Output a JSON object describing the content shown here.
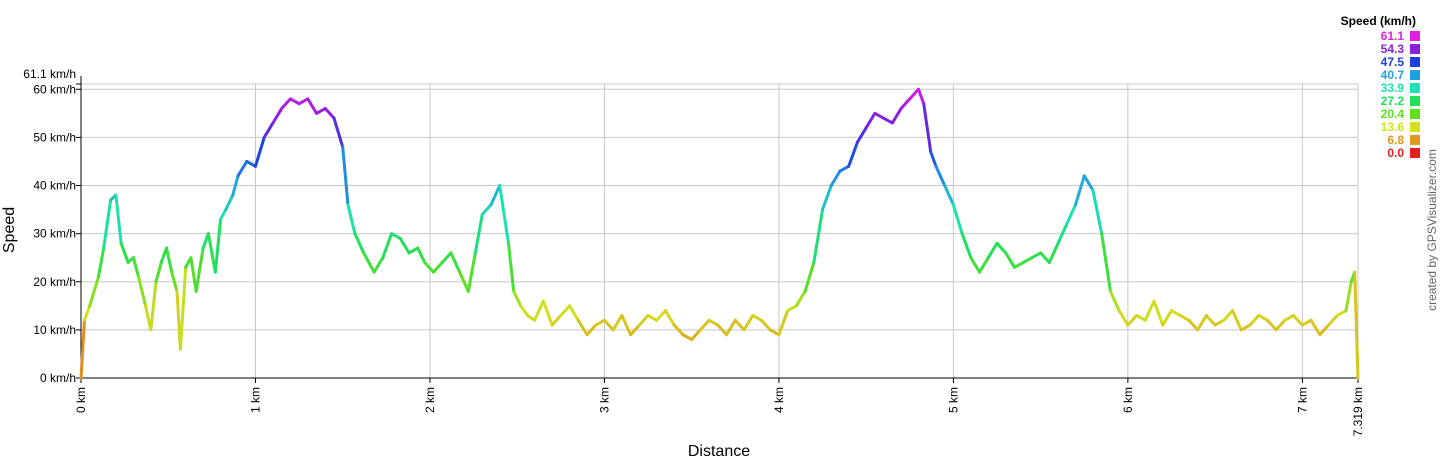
{
  "chart_data": {
    "type": "line",
    "title": "",
    "xlabel": "Distance",
    "ylabel": "Speed",
    "x_unit": "km",
    "y_unit": "km/h",
    "xlim": [
      0,
      7.319
    ],
    "ylim": [
      0,
      61.1
    ],
    "grid": true,
    "x_ticks": [
      "0 km",
      "1 km",
      "2 km",
      "3 km",
      "4 km",
      "5 km",
      "6 km",
      "7 km",
      "7.319 km"
    ],
    "y_ticks": [
      "0 km/h",
      "10 km/h",
      "20 km/h",
      "30 km/h",
      "40 km/h",
      "50 km/h",
      "60 km/h"
    ],
    "y_max_label": "61.1 km/h",
    "series": [
      {
        "x": [
          0,
          0.02,
          0.05,
          0.1,
          0.13,
          0.17,
          0.2,
          0.23,
          0.27,
          0.3,
          0.33,
          0.37,
          0.4,
          0.43,
          0.46,
          0.49,
          0.52,
          0.55,
          0.57,
          0.6,
          0.63,
          0.66,
          0.7,
          0.73,
          0.77,
          0.8,
          0.83,
          0.87,
          0.9,
          0.95,
          1.0,
          1.05,
          1.1,
          1.15,
          1.2,
          1.25,
          1.3,
          1.35,
          1.4,
          1.45,
          1.5,
          1.53,
          1.57,
          1.62,
          1.68,
          1.73,
          1.78,
          1.83,
          1.88,
          1.93,
          1.97,
          2.02,
          2.07,
          2.12,
          2.17,
          2.22,
          2.26,
          2.3,
          2.35,
          2.4,
          2.45,
          2.48,
          2.52,
          2.56,
          2.6,
          2.65,
          2.7,
          2.75,
          2.8,
          2.85,
          2.9,
          2.95,
          3.0,
          3.05,
          3.1,
          3.15,
          3.2,
          3.25,
          3.3,
          3.35,
          3.4,
          3.45,
          3.5,
          3.55,
          3.6,
          3.65,
          3.7,
          3.75,
          3.8,
          3.85,
          3.9,
          3.95,
          4.0,
          4.05,
          4.1,
          4.15,
          4.2,
          4.25,
          4.3,
          4.35,
          4.4,
          4.45,
          4.5,
          4.55,
          4.6,
          4.65,
          4.7,
          4.75,
          4.8,
          4.83,
          4.87,
          4.9,
          4.95,
          5.0,
          5.05,
          5.1,
          5.15,
          5.2,
          5.25,
          5.3,
          5.35,
          5.4,
          5.45,
          5.5,
          5.55,
          5.6,
          5.65,
          5.7,
          5.75,
          5.8,
          5.85,
          5.9,
          5.95,
          6.0,
          6.05,
          6.1,
          6.15,
          6.2,
          6.25,
          6.3,
          6.35,
          6.4,
          6.45,
          6.5,
          6.55,
          6.6,
          6.65,
          6.7,
          6.75,
          6.8,
          6.85,
          6.9,
          6.95,
          7.0,
          7.05,
          7.1,
          7.15,
          7.2,
          7.25,
          7.28,
          7.3,
          7.319
        ],
        "y": [
          0,
          12,
          15,
          21,
          27,
          37,
          38,
          28,
          24,
          25,
          21,
          15,
          10,
          20,
          24,
          27,
          22,
          18,
          6,
          23,
          25,
          18,
          27,
          30,
          22,
          33,
          35,
          38,
          42,
          45,
          44,
          50,
          53,
          56,
          58,
          57,
          58,
          55,
          56,
          54,
          48,
          36,
          30,
          26,
          22,
          25,
          30,
          29,
          26,
          27,
          24,
          22,
          24,
          26,
          22,
          18,
          26,
          34,
          36,
          40,
          28,
          18,
          15,
          13,
          12,
          16,
          11,
          13,
          15,
          12,
          9,
          11,
          12,
          10,
          13,
          9,
          11,
          13,
          12,
          14,
          11,
          9,
          8,
          10,
          12,
          11,
          9,
          12,
          10,
          13,
          12,
          10,
          9,
          14,
          15,
          18,
          24,
          35,
          40,
          43,
          44,
          49,
          52,
          55,
          54,
          53,
          56,
          58,
          60,
          57,
          47,
          44,
          40,
          36,
          30,
          25,
          22,
          25,
          28,
          26,
          23,
          24,
          25,
          26,
          24,
          28,
          32,
          36,
          42,
          39,
          30,
          18,
          14,
          11,
          13,
          12,
          16,
          11,
          14,
          13,
          12,
          10,
          13,
          11,
          12,
          14,
          10,
          11,
          13,
          12,
          10,
          12,
          13,
          11,
          12,
          9,
          11,
          13,
          14,
          20,
          22,
          0
        ]
      }
    ],
    "legend": {
      "title": "Speed (km/h)",
      "position": "top-right",
      "items": [
        {
          "label": "61.1",
          "color": "#e01fe0"
        },
        {
          "label": "54.3",
          "color": "#8a1fe0"
        },
        {
          "label": "47.5",
          "color": "#1f3ee0"
        },
        {
          "label": "40.7",
          "color": "#1fa0e0"
        },
        {
          "label": "33.9",
          "color": "#1fe0b4"
        },
        {
          "label": "27.2",
          "color": "#1fe05a"
        },
        {
          "label": "20.4",
          "color": "#5ee01f"
        },
        {
          "label": "13.6",
          "color": "#d2e01f"
        },
        {
          "label": "6.8",
          "color": "#e09a1f"
        },
        {
          "label": "0.0",
          "color": "#e01f1f"
        }
      ]
    }
  },
  "credit": "created by GPSVisualizer.com"
}
